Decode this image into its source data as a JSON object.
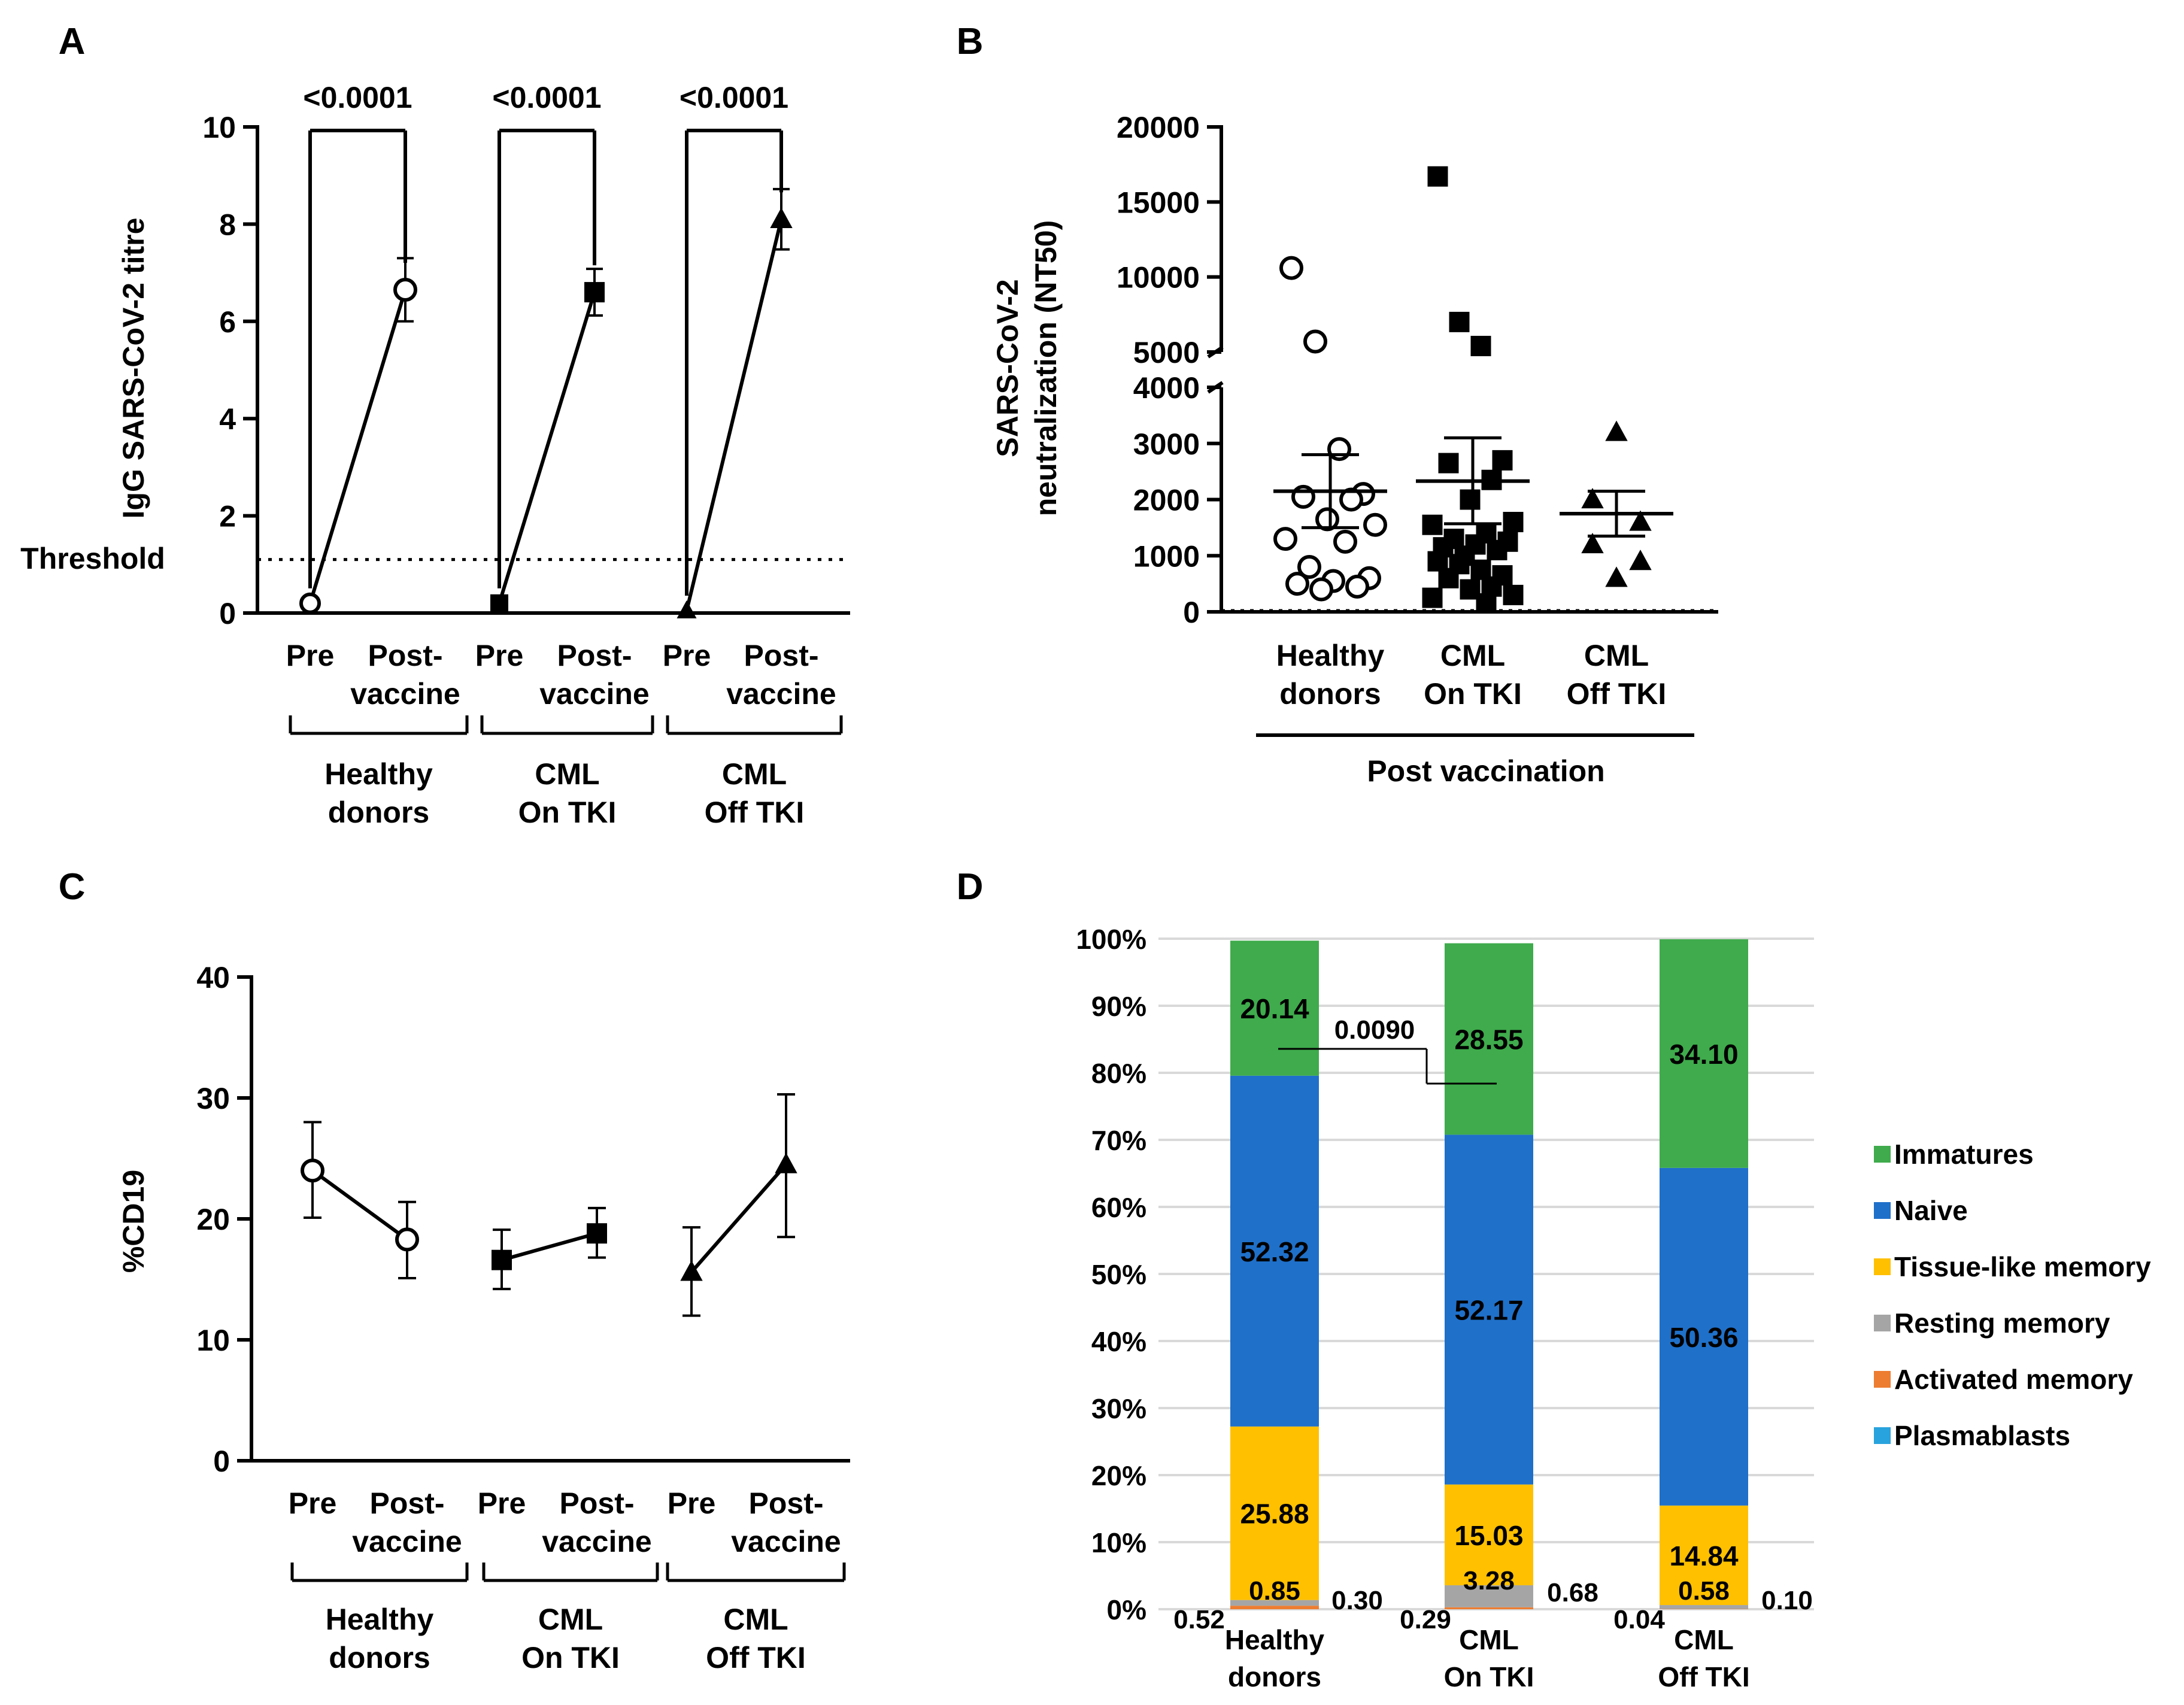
{
  "chart_data": [
    {
      "panel": "A",
      "type": "line",
      "ylabel": "IgG SARS-CoV-2 titre",
      "ylim": [
        0,
        10
      ],
      "yticks": [
        "0",
        "2",
        "4",
        "6",
        "8",
        "10"
      ],
      "threshold": {
        "label": "Threshold",
        "value": 1.1
      },
      "x_labels": [
        "Pre",
        "Post-\nvaccine",
        "Pre",
        "Post-\nvaccine",
        "Pre",
        "Post-\nvaccine"
      ],
      "groups": [
        "Healthy\ndonors",
        "CML\nOn TKI",
        "CML\nOff TKI"
      ],
      "p_values": [
        "<0.0001",
        "<0.0001",
        "<0.0001"
      ],
      "series": [
        {
          "name": "Healthy donors",
          "marker": "circle",
          "values": [
            0.2,
            6.65
          ],
          "errors": [
            0,
            0.65
          ]
        },
        {
          "name": "CML On TKI",
          "marker": "square",
          "values": [
            0.2,
            6.6
          ],
          "errors": [
            0,
            0.48
          ]
        },
        {
          "name": "CML Off TKI",
          "marker": "triangle",
          "values": [
            0.05,
            8.1
          ],
          "errors": [
            0,
            0.62
          ]
        }
      ]
    },
    {
      "panel": "B",
      "type": "scatter",
      "ylabel": "SARS-CoV-2\nneutralization (NT50)",
      "ylim_lower": [
        0,
        4000
      ],
      "ylim_upper": [
        5000,
        20000
      ],
      "yticks_lower": [
        "0",
        "1000",
        "2000",
        "3000",
        "4000"
      ],
      "yticks_upper": [
        "5000",
        "10000",
        "15000",
        "20000"
      ],
      "categories": [
        "Healthy\ndonors",
        "CML\nOn TKI",
        "CML\nOff TKI"
      ],
      "xlabel": "Post vaccination",
      "series": [
        {
          "name": "Healthy donors",
          "marker": "circle",
          "mean": 2150,
          "sem": [
            1500,
            2800
          ],
          "values": [
            10600,
            5700,
            2900,
            2100,
            2050,
            2000,
            1650,
            1550,
            1300,
            1250,
            800,
            600,
            550,
            500,
            450,
            400
          ]
        },
        {
          "name": "CML On TKI",
          "marker": "square",
          "mean": 2330,
          "sem": [
            1570,
            3100
          ],
          "values": [
            16700,
            7000,
            5400,
            2700,
            2650,
            2350,
            2000,
            1600,
            1550,
            1400,
            1300,
            1250,
            1200,
            1150,
            1100,
            1000,
            900,
            850,
            750,
            650,
            600,
            450,
            400,
            300,
            250,
            150
          ]
        },
        {
          "name": "CML Off TKI",
          "marker": "triangle",
          "mean": 1750,
          "sem": [
            1350,
            2150
          ],
          "values": [
            3200,
            2000,
            1600,
            1200,
            900,
            600
          ]
        }
      ]
    },
    {
      "panel": "C",
      "type": "line",
      "ylabel": "%CD19",
      "ylim": [
        0,
        40
      ],
      "yticks": [
        "0",
        "10",
        "20",
        "30",
        "40"
      ],
      "x_labels": [
        "Pre",
        "Post-\nvaccine",
        "Pre",
        "Post-\nvaccine",
        "Pre",
        "Post-\nvaccine"
      ],
      "groups": [
        "Healthy\ndonors",
        "CML\nOn TKI",
        "CML\nOff TKI"
      ],
      "series": [
        {
          "name": "Healthy donors",
          "marker": "circle",
          "values": [
            24.0,
            18.3
          ],
          "err_low": [
            20.1,
            15.1
          ],
          "err_high": [
            28.0,
            21.4
          ]
        },
        {
          "name": "CML On TKI",
          "marker": "square",
          "values": [
            16.6,
            18.8
          ],
          "err_low": [
            14.2,
            16.8
          ],
          "err_high": [
            19.1,
            20.9
          ]
        },
        {
          "name": "CML Off TKI",
          "marker": "triangle",
          "values": [
            15.6,
            24.5
          ],
          "err_low": [
            12.0,
            18.5
          ],
          "err_high": [
            19.3,
            30.3
          ]
        }
      ]
    },
    {
      "panel": "D",
      "type": "bar",
      "stacked": true,
      "yticks": [
        "0%",
        "10%",
        "20%",
        "30%",
        "40%",
        "50%",
        "60%",
        "70%",
        "80%",
        "90%",
        "100%"
      ],
      "categories": [
        "Healthy\ndonors",
        "CML\nOn TKI",
        "CML\nOff TKI"
      ],
      "significance": {
        "label": "0.0090"
      },
      "legend": [
        "Immatures",
        "Naive",
        "Tissue-like memory",
        "Resting memory",
        "Activated memory",
        "Plasmablasts"
      ],
      "series": [
        {
          "name": "Plasmablasts",
          "color": "#29a3dd",
          "values": [
            0.0,
            0.0,
            0.0
          ],
          "labels": [
            "",
            "",
            ""
          ]
        },
        {
          "name": "Activated memory",
          "color": "#ed7d31",
          "values": [
            0.52,
            0.29,
            0.04
          ],
          "labels": [
            "0.52",
            "0.29",
            "0.04"
          ]
        },
        {
          "name": "Resting memory",
          "color": "#a5a5a5",
          "values": [
            0.85,
            3.28,
            0.58
          ],
          "labels": [
            "0.85",
            "3.28",
            "0.58"
          ]
        },
        {
          "name": "Tissue-like memory",
          "color": "#ffc000",
          "values": [
            25.88,
            15.03,
            14.84
          ],
          "labels": [
            "25.88",
            "15.03",
            "14.84"
          ]
        },
        {
          "name": "Naive",
          "color": "#1f70c9",
          "values": [
            52.32,
            52.17,
            50.36
          ],
          "labels": [
            "52.32",
            "52.17",
            "50.36"
          ]
        },
        {
          "name": "Immatures",
          "color": "#3fab4c",
          "values": [
            20.14,
            28.55,
            34.1
          ],
          "labels": [
            "20.14",
            "28.55",
            "34.10"
          ]
        }
      ],
      "extra_labels": [
        "0.30",
        "0.68",
        "0.10"
      ]
    }
  ]
}
